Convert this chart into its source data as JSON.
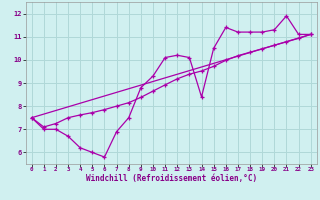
{
  "xlabel": "Windchill (Refroidissement éolien,°C)",
  "ylabel": "",
  "bg_color": "#d0f0f0",
  "grid_color": "#b0d8d8",
  "line_color": "#aa00aa",
  "label_color": "#880088",
  "xlim": [
    -0.5,
    23.5
  ],
  "ylim": [
    5.5,
    12.5
  ],
  "yticks": [
    6,
    7,
    8,
    9,
    10,
    11,
    12
  ],
  "xticks": [
    0,
    1,
    2,
    3,
    4,
    5,
    6,
    7,
    8,
    9,
    10,
    11,
    12,
    13,
    14,
    15,
    16,
    17,
    18,
    19,
    20,
    21,
    22,
    23
  ],
  "xtick_labels": [
    "0",
    "1",
    "2",
    "3",
    "4",
    "5",
    "6",
    "7",
    "8",
    "9",
    "10",
    "11",
    "12",
    "13",
    "14",
    "15",
    "16",
    "17",
    "18",
    "19",
    "20",
    "21",
    "22",
    "23"
  ],
  "series1_x": [
    0,
    1,
    2,
    3,
    4,
    5,
    6,
    7,
    8,
    9,
    10,
    11,
    12,
    13,
    14,
    15,
    16,
    17,
    18,
    19,
    20,
    21,
    22,
    23
  ],
  "series1_y": [
    7.5,
    7.0,
    7.0,
    6.7,
    6.2,
    6.0,
    5.8,
    6.9,
    7.5,
    8.8,
    9.3,
    10.1,
    10.2,
    10.1,
    8.4,
    10.5,
    11.4,
    11.2,
    11.2,
    11.2,
    11.3,
    11.9,
    11.1,
    11.1
  ],
  "series2_x": [
    0,
    23
  ],
  "series2_y": [
    7.5,
    11.1
  ],
  "series3_x": [
    0,
    1,
    2,
    3,
    4,
    5,
    6,
    7,
    8,
    9,
    10,
    11,
    12,
    13,
    14,
    15,
    16,
    17,
    18,
    19,
    20,
    21,
    22,
    23
  ],
  "series3_y": [
    7.5,
    7.1,
    7.25,
    7.5,
    7.62,
    7.72,
    7.85,
    8.0,
    8.15,
    8.38,
    8.65,
    8.92,
    9.18,
    9.38,
    9.52,
    9.72,
    9.98,
    10.18,
    10.33,
    10.48,
    10.63,
    10.78,
    10.93,
    11.1
  ]
}
